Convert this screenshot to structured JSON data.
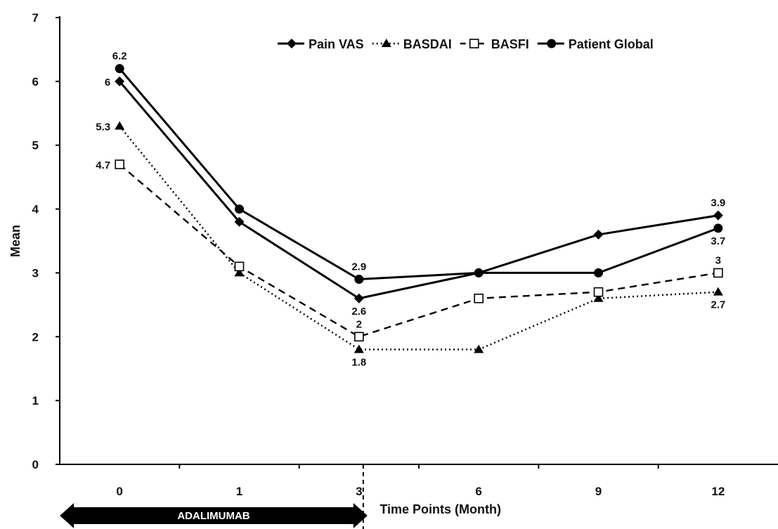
{
  "chart_data": {
    "type": "line",
    "title": "",
    "xlabel": "Time Points (Month)",
    "ylabel": "Mean",
    "categories": [
      "0",
      "1",
      "3",
      "6",
      "9",
      "12"
    ],
    "ylim": [
      0,
      7
    ],
    "yticks": [
      "0",
      "1",
      "2",
      "3",
      "4",
      "5",
      "6",
      "7"
    ],
    "grid": false,
    "legend_position": "top-right",
    "series": [
      {
        "name": "Pain VAS",
        "values": [
          6,
          3.8,
          2.6,
          3,
          3.6,
          3.9
        ],
        "marker": "diamond",
        "line_style": "solid",
        "color": "#000000",
        "labels": [
          {
            "index": 0,
            "text": "6",
            "pos": "left"
          },
          {
            "index": 2,
            "text": "2.6",
            "pos": "below"
          },
          {
            "index": 5,
            "text": "3.9",
            "pos": "above"
          }
        ]
      },
      {
        "name": "BASDAI",
        "values": [
          5.3,
          3.0,
          1.8,
          1.8,
          2.6,
          2.7
        ],
        "marker": "triangle",
        "line_style": "dotted",
        "color": "#000000",
        "labels": [
          {
            "index": 0,
            "text": "5.3",
            "pos": "left"
          },
          {
            "index": 2,
            "text": "1.8",
            "pos": "below"
          },
          {
            "index": 5,
            "text": "2.7",
            "pos": "below"
          }
        ]
      },
      {
        "name": "BASFI",
        "values": [
          4.7,
          3.1,
          2.0,
          2.6,
          2.7,
          3.0
        ],
        "marker": "open-square",
        "line_style": "dashed",
        "color": "#000000",
        "labels": [
          {
            "index": 0,
            "text": "4.7",
            "pos": "left"
          },
          {
            "index": 2,
            "text": "2",
            "pos": "above"
          },
          {
            "index": 5,
            "text": "3",
            "pos": "above"
          }
        ]
      },
      {
        "name": "Patient Global",
        "values": [
          6.2,
          4.0,
          2.9,
          3.0,
          3.0,
          3.7
        ],
        "marker": "circle",
        "line_style": "solid",
        "color": "#000000",
        "labels": [
          {
            "index": 0,
            "text": "6.2",
            "pos": "above"
          },
          {
            "index": 2,
            "text": "2.9",
            "pos": "above"
          },
          {
            "index": 5,
            "text": "3.7",
            "pos": "below"
          }
        ]
      }
    ],
    "annotations": {
      "treatment_band": {
        "text": "ADALIMUMAB",
        "from_category": "0",
        "to_category": "3",
        "color": "#000000",
        "text_color": "#ffffff"
      },
      "divider_after_category": "3"
    }
  }
}
